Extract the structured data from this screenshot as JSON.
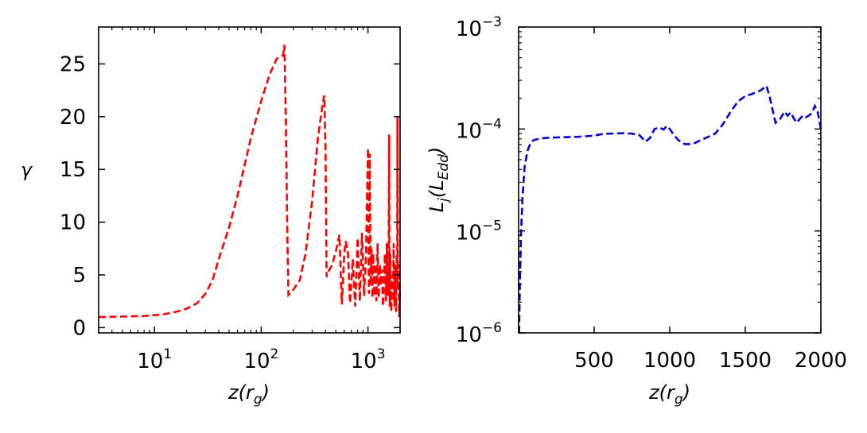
{
  "chart_data": [
    {
      "type": "line",
      "xscale": "log",
      "xlim": [
        3,
        2000
      ],
      "ylim": [
        -0.5,
        28.5
      ],
      "xlabel": {
        "base": "z(r",
        "sub": "g",
        "close": ")"
      },
      "ylabel": "γ",
      "xticks": [
        {
          "value": 10,
          "base": "10",
          "exp": "1"
        },
        {
          "value": 100,
          "base": "10",
          "exp": "2"
        },
        {
          "value": 1000,
          "base": "10",
          "exp": "3"
        }
      ],
      "yticks": [
        {
          "value": 0,
          "label": "0"
        },
        {
          "value": 5,
          "label": "5"
        },
        {
          "value": 10,
          "label": "10"
        },
        {
          "value": 15,
          "label": "15"
        },
        {
          "value": 20,
          "label": "20"
        },
        {
          "value": 25,
          "label": "25"
        }
      ],
      "series": [
        {
          "name": "gamma",
          "color": "#ff0000",
          "style": "dashed",
          "x": [
            3,
            5,
            8,
            12,
            16,
            20,
            25,
            30,
            35,
            40,
            50,
            60,
            80,
            100,
            120,
            140,
            160,
            165,
            170,
            175,
            180,
            200,
            230,
            260,
            300,
            340,
            380,
            390,
            400,
            410,
            430,
            460,
            500,
            540,
            570,
            600,
            620,
            650,
            680,
            720,
            760,
            800,
            840,
            880,
            920,
            960,
            1000,
            1010,
            1020,
            1040,
            1060,
            1080,
            1100,
            1120,
            1150,
            1180,
            1200,
            1230,
            1260,
            1290,
            1320,
            1350,
            1380,
            1410,
            1440,
            1470,
            1500,
            1530,
            1560,
            1580,
            1590,
            1600,
            1620,
            1650,
            1680,
            1710,
            1740,
            1770,
            1800,
            1830,
            1860,
            1880,
            1890,
            1900,
            1930,
            1960,
            2000
          ],
          "y": [
            1,
            1.05,
            1.1,
            1.25,
            1.5,
            1.8,
            2.3,
            3.2,
            4.5,
            6.5,
            9.5,
            12.5,
            18,
            21.5,
            24,
            25.5,
            25.8,
            26.8,
            20,
            10,
            3.1,
            3.6,
            4.5,
            7,
            12,
            18,
            21.5,
            22,
            17,
            4.8,
            5.4,
            5.9,
            7.2,
            8.8,
            2.2,
            7,
            8.2,
            7,
            2.3,
            6.5,
            2,
            8.5,
            2.5,
            9,
            3,
            7,
            17,
            9,
            3.2,
            16.5,
            4,
            7.5,
            2.8,
            7,
            3,
            6,
            2.5,
            8,
            2.8,
            6,
            4,
            5.5,
            2,
            4.5,
            7,
            2.5,
            8,
            3,
            5.5,
            18.3,
            4,
            2,
            7,
            1.5,
            5,
            2.5,
            8,
            2,
            6,
            1.5,
            7,
            4,
            20,
            3.5,
            6,
            1,
            4
          ]
        }
      ]
    },
    {
      "type": "line",
      "yscale": "log",
      "xlim": [
        0,
        2000
      ],
      "ylim": [
        1e-06,
        0.001
      ],
      "xlabel": {
        "base": "z(r",
        "sub": "g",
        "close": ")"
      },
      "ylabel": {
        "base": "L",
        "sub1": "j",
        "mid": "(L",
        "sub2": "Edd",
        "close": ")"
      },
      "xticks": [
        {
          "value": 500,
          "label": "500"
        },
        {
          "value": 1000,
          "label": "1000"
        },
        {
          "value": 1500,
          "label": "1500"
        },
        {
          "value": 2000,
          "label": "2000"
        }
      ],
      "yticks": [
        {
          "value": 1e-06,
          "base": "10",
          "exp": "−6"
        },
        {
          "value": 1e-05,
          "base": "10",
          "exp": "−5"
        },
        {
          "value": 0.0001,
          "base": "10",
          "exp": "−4"
        },
        {
          "value": 0.001,
          "base": "10",
          "exp": "−3"
        }
      ],
      "series": [
        {
          "name": "jet luminosity",
          "color": "#0000dd",
          "style": "dashed",
          "x": [
            3,
            8,
            15,
            25,
            40,
            60,
            80,
            100,
            150,
            200,
            300,
            400,
            500,
            550,
            600,
            700,
            750,
            800,
            840,
            870,
            900,
            930,
            960,
            980,
            1000,
            1030,
            1060,
            1100,
            1150,
            1200,
            1250,
            1300,
            1350,
            1400,
            1450,
            1500,
            1550,
            1600,
            1640,
            1660,
            1700,
            1730,
            1760,
            1780,
            1800,
            1820,
            1840,
            1860,
            1880,
            1900,
            1920,
            1940,
            1960,
            1980,
            2000
          ],
          "y": [
            1e-06,
            2.8e-06,
            8.5e-06,
            2.1e-05,
            4.3e-05,
            6.2e-05,
            7.3e-05,
            7.8e-05,
            8.1e-05,
            8.2e-05,
            8.3e-05,
            8.4e-05,
            8.6e-05,
            8.9e-05,
            9e-05,
            9.1e-05,
            9e-05,
            8.7e-05,
            7.5e-05,
            8.2e-05,
            0.0001,
            0.000103,
            9.9e-05,
            0.000107,
            0.0001,
            8.6e-05,
            7.7e-05,
            7.1e-05,
            7.1e-05,
            7.7e-05,
            8.3e-05,
            9e-05,
            0.00011,
            0.000145,
            0.000185,
            0.00021,
            0.000222,
            0.000238,
            0.000265,
            0.00021,
            0.000115,
            0.000125,
            0.000148,
            0.000135,
            0.000145,
            0.000128,
            0.000115,
            0.000125,
            0.000135,
            0.00013,
            0.000135,
            0.000143,
            0.000168,
            0.000145,
            0.0001
          ]
        }
      ]
    }
  ]
}
